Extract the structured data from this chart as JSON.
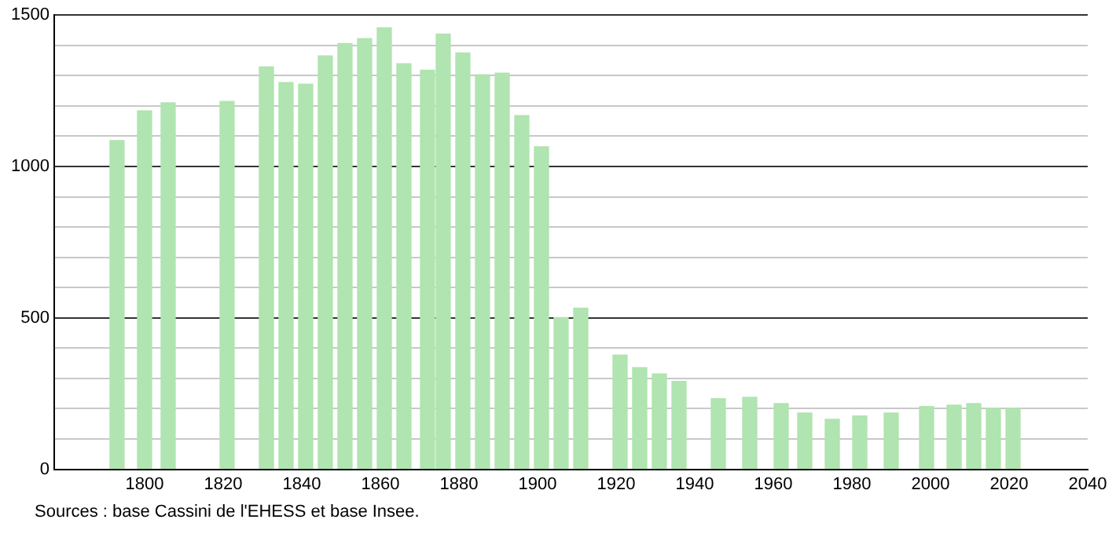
{
  "chart_data": {
    "type": "bar",
    "x": [
      1793,
      1800,
      1806,
      1821,
      1831,
      1836,
      1841,
      1846,
      1851,
      1856,
      1861,
      1866,
      1872,
      1876,
      1881,
      1886,
      1891,
      1896,
      1901,
      1906,
      1911,
      1921,
      1926,
      1931,
      1936,
      1946,
      1954,
      1962,
      1968,
      1975,
      1982,
      1990,
      1999,
      2006,
      2011,
      2016,
      2021
    ],
    "values": [
      1086,
      1184,
      1210,
      1215,
      1329,
      1277,
      1272,
      1365,
      1406,
      1422,
      1458,
      1339,
      1318,
      1437,
      1375,
      1303,
      1308,
      1168,
      1065,
      501,
      532,
      377,
      336,
      315,
      290,
      233,
      238,
      217,
      186,
      165,
      176,
      186,
      207,
      212,
      217,
      202,
      202
    ],
    "color": "#b0e4b0",
    "xlim": [
      1777,
      2040
    ],
    "xticks": [
      1800,
      1820,
      1840,
      1860,
      1880,
      1900,
      1920,
      1940,
      1960,
      1980,
      2000,
      2020,
      2040
    ],
    "ylim": [
      0,
      1500
    ],
    "yticks": [
      0,
      {
        "value": 100,
        "label": null
      },
      {
        "value": 200,
        "label": null
      },
      {
        "value": 300,
        "label": null
      },
      {
        "value": 400,
        "label": null
      },
      500,
      {
        "value": 600,
        "label": null
      },
      {
        "value": 700,
        "label": null
      },
      {
        "value": 800,
        "label": null
      },
      {
        "value": 900,
        "label": null
      },
      1000,
      {
        "value": 1100,
        "label": null
      },
      {
        "value": 1200,
        "label": null
      },
      {
        "value": 1300,
        "label": null
      },
      {
        "value": 1400,
        "label": null
      },
      1500
    ],
    "grid": "y",
    "legend": false,
    "annotations": [
      "Sources : base Cassini de l'EHESS et base Insee."
    ]
  }
}
